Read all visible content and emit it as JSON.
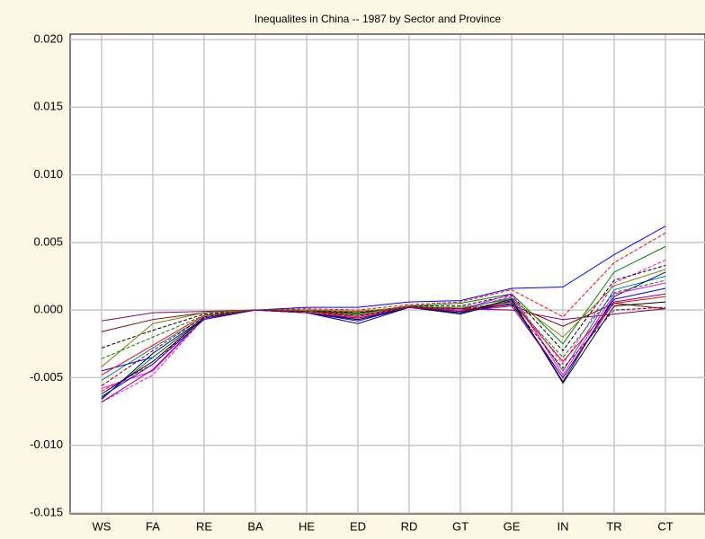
{
  "chart_data": {
    "type": "line",
    "title": "Inequalites in China -- 1987 by Sector and Province",
    "categories": [
      "WS",
      "FA",
      "RE",
      "BA",
      "HE",
      "ED",
      "RD",
      "GT",
      "GE",
      "IN",
      "TR",
      "CT"
    ],
    "ylim": [
      -0.015,
      0.02
    ],
    "yticks": [
      -0.015,
      {
        "value": -0.01,
        "label": "-0.010"
      },
      -0.005,
      {
        "value": 0,
        "label": "0.000"
      },
      0.005,
      {
        "value": 0.01,
        "label": "0.010"
      },
      0.015,
      {
        "value": 0.02,
        "label": "0.020"
      }
    ],
    "grid": true,
    "series": [
      {
        "color": "#0000ff",
        "values": [
          -0.0045,
          -0.0035,
          -0.0006,
          0,
          0.0002,
          0.0002,
          0.0006,
          0.0007,
          0.0016,
          0.0017,
          0.0041,
          0.0062
        ]
      },
      {
        "color": "#ff0000",
        "dash": true,
        "values": [
          -0.006,
          -0.004,
          -0.0005,
          0,
          0.0001,
          0,
          0.0004,
          0.0006,
          0.0015,
          -0.0005,
          0.0035,
          0.0057
        ]
      },
      {
        "color": "#008000",
        "values": [
          -0.0065,
          -0.0035,
          -0.0006,
          0,
          0,
          -0.0003,
          0.0003,
          0.0005,
          0.0012,
          -0.0025,
          0.0028,
          0.0047
        ]
      },
      {
        "color": "#800080",
        "values": [
          -0.0008,
          -0.0002,
          -0.0001,
          0,
          0,
          -0.0001,
          0.0002,
          0.0001,
          0,
          -0.0007,
          -0.0003,
          0.0001
        ]
      },
      {
        "color": "#800000",
        "values": [
          -0.0016,
          -0.0007,
          -0.0002,
          0,
          -0.0001,
          -0.0002,
          0.0002,
          0,
          0.0004,
          -0.0012,
          0.0005,
          0.0001
        ]
      },
      {
        "color": "#ff00ff",
        "dash": true,
        "values": [
          -0.0068,
          -0.0048,
          -0.0006,
          0,
          -0.0002,
          -0.0005,
          0.0002,
          0,
          0.001,
          -0.004,
          0.002,
          0.0037
        ]
      },
      {
        "color": "#000000",
        "dash": true,
        "values": [
          -0.0028,
          -0.0015,
          -0.0003,
          0,
          0,
          -0.0002,
          0.0003,
          0.0003,
          0.0011,
          -0.003,
          0.0022,
          0.0033
        ]
      },
      {
        "color": "#808000",
        "values": [
          -0.0042,
          -0.001,
          -0.0002,
          0,
          0,
          -0.0001,
          0.0002,
          0.0002,
          0.0008,
          -0.002,
          0.0018,
          0.003
        ]
      },
      {
        "color": "#008080",
        "values": [
          -0.0052,
          -0.0028,
          -0.0005,
          0,
          -0.0001,
          -0.0004,
          0.0002,
          0.0001,
          0.0009,
          -0.0045,
          0.0015,
          0.0025
        ]
      },
      {
        "color": "#000080",
        "values": [
          -0.0066,
          -0.0032,
          -0.0006,
          0,
          -0.0002,
          -0.001,
          0.0002,
          -0.0003,
          0.0007,
          -0.0053,
          0.001,
          0.0028
        ]
      },
      {
        "color": "#ff00ff",
        "values": [
          -0.0058,
          -0.0045,
          -0.0006,
          0,
          -0.0002,
          -0.0006,
          0.0002,
          0,
          0.0012,
          -0.0048,
          0.0012,
          0.002
        ]
      },
      {
        "color": "#0000ff",
        "values": [
          -0.0064,
          -0.004,
          -0.0007,
          0,
          -0.0002,
          -0.0008,
          0.0002,
          -0.0002,
          0.0005,
          -0.005,
          0.0008,
          0.0016
        ]
      },
      {
        "color": "#ff0000",
        "values": [
          -0.0048,
          -0.0026,
          -0.0004,
          0,
          -0.0001,
          -0.0005,
          0.0003,
          -0.0001,
          0.0006,
          -0.0038,
          0.0005,
          0.001
        ]
      },
      {
        "color": "#008000",
        "dash": true,
        "values": [
          -0.0036,
          -0.002,
          -0.0004,
          0,
          -0.0001,
          -0.0003,
          0.0003,
          0.0001,
          0.0006,
          -0.0035,
          0.0013,
          0.0022
        ]
      },
      {
        "color": "#000000",
        "values": [
          -0.0062,
          -0.0038,
          -0.0006,
          0,
          -0.0002,
          -0.0007,
          0.0002,
          -0.0002,
          0.0008,
          -0.0054,
          0.0003,
          0.0006
        ]
      },
      {
        "color": "#800000",
        "dash": true,
        "values": [
          -0.0056,
          -0.003,
          -0.0005,
          0,
          -0.0001,
          -0.0004,
          0.0002,
          0.0001,
          0.0004,
          -0.0043,
          0,
          0.0002
        ]
      },
      {
        "color": "#800080",
        "values": [
          -0.0068,
          -0.0044,
          -0.0006,
          0,
          -0.0002,
          -0.0006,
          0.0002,
          -0.0001,
          0.0003,
          -0.005,
          0.0006,
          0.0012
        ]
      }
    ]
  }
}
